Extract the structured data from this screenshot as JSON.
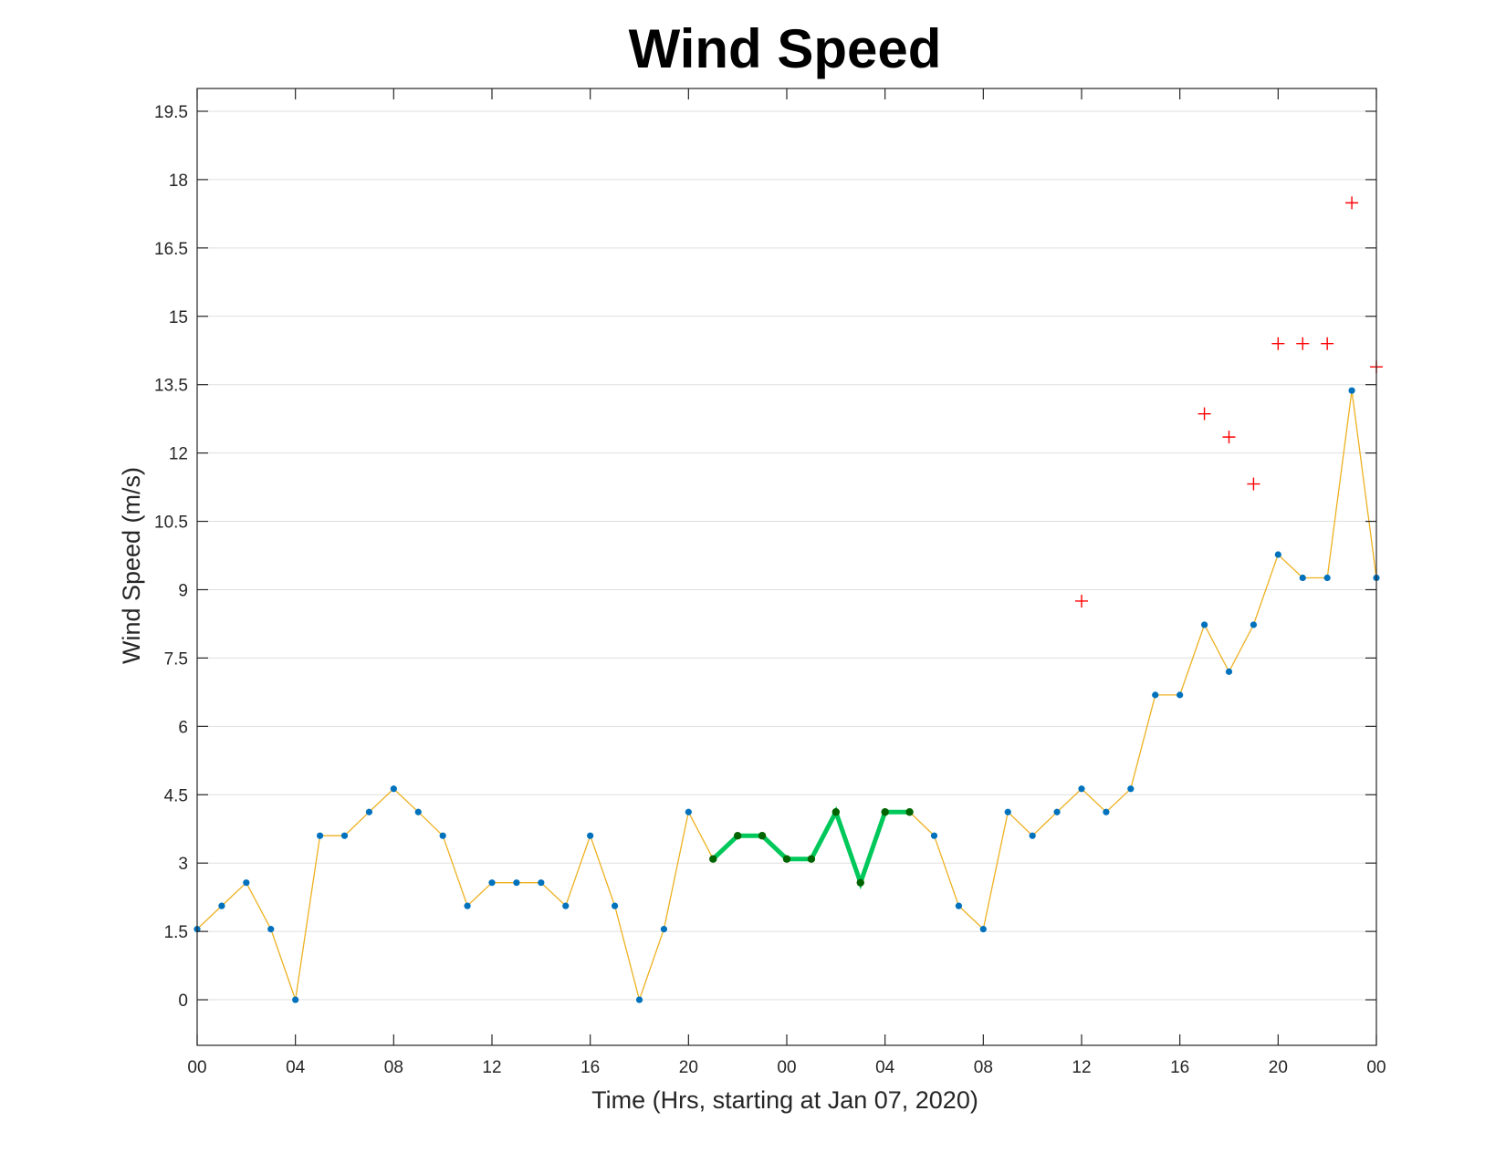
{
  "chart_data": {
    "type": "line",
    "title": "Wind Speed",
    "xlabel": "Time (Hrs, starting at Jan 07, 2020)",
    "ylabel": "Wind Speed (m/s)",
    "xlim": [
      0,
      48
    ],
    "ylim": [
      -1,
      20
    ],
    "x_ticks": [
      {
        "x": 0,
        "label": "00"
      },
      {
        "x": 4,
        "label": "04"
      },
      {
        "x": 8,
        "label": "08"
      },
      {
        "x": 12,
        "label": "12"
      },
      {
        "x": 16,
        "label": "16"
      },
      {
        "x": 20,
        "label": "20"
      },
      {
        "x": 24,
        "label": "00"
      },
      {
        "x": 28,
        "label": "04"
      },
      {
        "x": 32,
        "label": "08"
      },
      {
        "x": 36,
        "label": "12"
      },
      {
        "x": 40,
        "label": "16"
      },
      {
        "x": 44,
        "label": "20"
      },
      {
        "x": 48,
        "label": "00"
      }
    ],
    "y_ticks": [
      {
        "y": 0,
        "label": "0"
      },
      {
        "y": 1.5,
        "label": "1.5"
      },
      {
        "y": 3,
        "label": "3"
      },
      {
        "y": 4.5,
        "label": "4.5"
      },
      {
        "y": 6,
        "label": "6"
      },
      {
        "y": 7.5,
        "label": "7.5"
      },
      {
        "y": 9,
        "label": "9"
      },
      {
        "y": 10.5,
        "label": "10.5"
      },
      {
        "y": 12,
        "label": "12"
      },
      {
        "y": 13.5,
        "label": "13.5"
      },
      {
        "y": 15,
        "label": "15"
      },
      {
        "y": 16.5,
        "label": "16.5"
      },
      {
        "y": 18,
        "label": "18"
      },
      {
        "y": 19.5,
        "label": "19.5"
      }
    ],
    "grid": true,
    "series": [
      {
        "style": "thin-line-with-markers",
        "line_color": "#EDB120",
        "marker_color": "#0072BD",
        "x": [
          0,
          1,
          2,
          3,
          4,
          5,
          6,
          7,
          8,
          9,
          10,
          11,
          12,
          13,
          14,
          15,
          16,
          17,
          18,
          19,
          20,
          21,
          22,
          23,
          24,
          25,
          26,
          27,
          28,
          29,
          30,
          31,
          32,
          33,
          34,
          35,
          36,
          37,
          38,
          39,
          40,
          41,
          42,
          43,
          44,
          45,
          46,
          47,
          48
        ],
        "y": [
          1.55,
          2.06,
          2.57,
          1.55,
          0,
          3.6,
          3.6,
          4.12,
          4.63,
          4.12,
          3.6,
          2.06,
          2.57,
          2.57,
          2.57,
          2.06,
          3.6,
          2.06,
          0,
          1.55,
          4.12,
          3.09,
          3.6,
          3.6,
          3.09,
          3.09,
          4.12,
          2.57,
          4.12,
          4.12,
          3.6,
          2.06,
          1.55,
          4.12,
          3.6,
          4.12,
          4.63,
          4.12,
          4.63,
          6.69,
          6.69,
          8.23,
          7.2,
          8.23,
          9.77,
          9.26,
          9.26,
          13.37,
          9.26
        ]
      },
      {
        "style": "thick-highlight",
        "line_color": "#00C85A",
        "marker_color": "#006400",
        "x": [
          21,
          22,
          23,
          24,
          25,
          26,
          27,
          28,
          29
        ],
        "y": [
          3.09,
          3.6,
          3.6,
          3.09,
          3.09,
          4.12,
          2.57,
          4.12,
          4.12
        ]
      },
      {
        "style": "plus-markers",
        "marker_color": "#FF0000",
        "x": [
          36,
          41,
          42,
          43,
          44,
          45,
          46,
          47,
          48
        ],
        "y": [
          8.75,
          12.86,
          12.35,
          11.32,
          14.4,
          14.4,
          14.4,
          17.49,
          13.89
        ]
      }
    ]
  }
}
